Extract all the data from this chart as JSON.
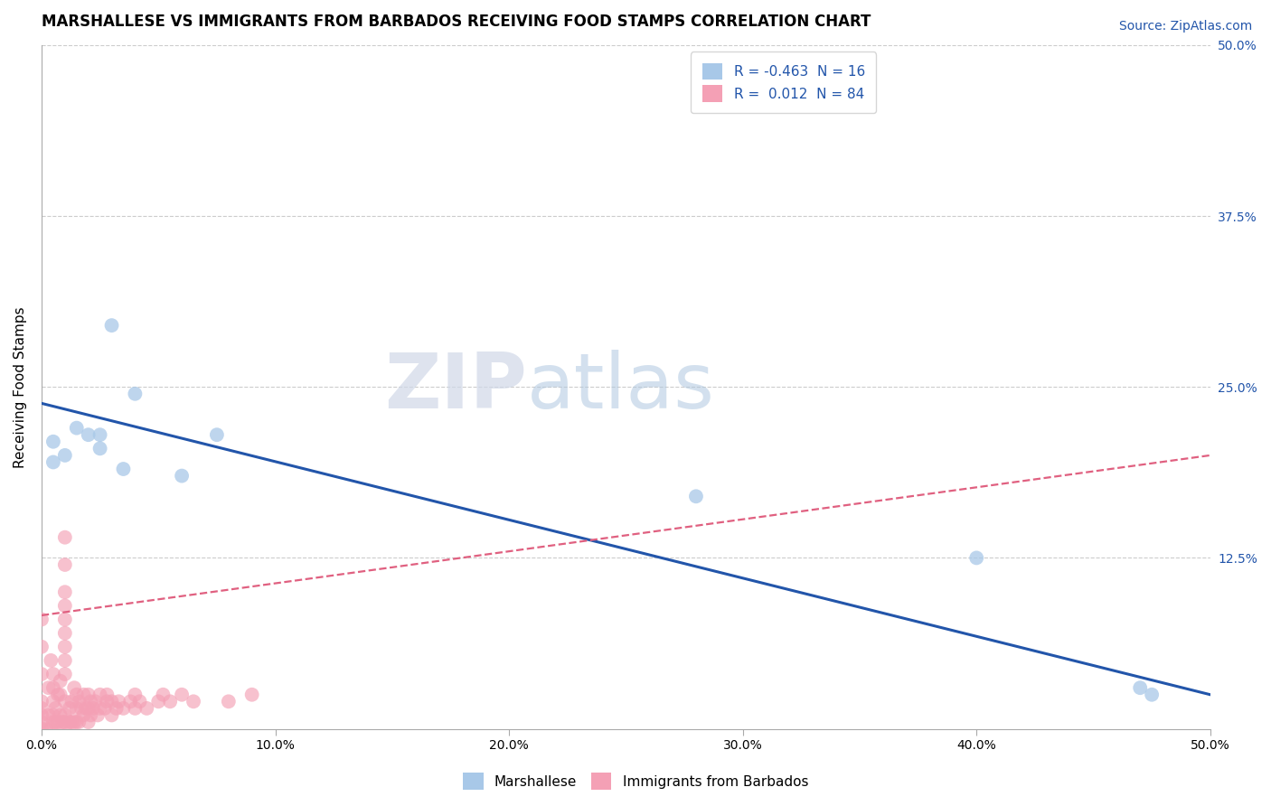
{
  "title": "MARSHALLESE VS IMMIGRANTS FROM BARBADOS RECEIVING FOOD STAMPS CORRELATION CHART",
  "source": "Source: ZipAtlas.com",
  "ylabel": "Receiving Food Stamps",
  "xmin": 0.0,
  "xmax": 0.5,
  "ymin": 0.0,
  "ymax": 0.5,
  "xticks": [
    0.0,
    0.1,
    0.2,
    0.3,
    0.4,
    0.5
  ],
  "yticks": [
    0.0,
    0.125,
    0.25,
    0.375,
    0.5
  ],
  "ytick_labels_right": [
    "",
    "12.5%",
    "25.0%",
    "37.5%",
    "50.0%"
  ],
  "xtick_labels": [
    "0.0%",
    "10.0%",
    "20.0%",
    "30.0%",
    "40.0%",
    "50.0%"
  ],
  "grid_color": "#cccccc",
  "background_color": "#ffffff",
  "blue_dot_color": "#a8c8e8",
  "pink_dot_color": "#f4a0b5",
  "blue_line_color": "#2255aa",
  "pink_line_color": "#e06080",
  "R_blue": -0.463,
  "N_blue": 16,
  "R_pink": 0.012,
  "N_pink": 84,
  "blue_line_x0": 0.0,
  "blue_line_y0": 0.238,
  "blue_line_x1": 0.5,
  "blue_line_y1": 0.025,
  "pink_line_x0": 0.0,
  "pink_line_y0": 0.083,
  "pink_line_x1": 0.5,
  "pink_line_y1": 0.2,
  "blue_scatter_x": [
    0.005,
    0.005,
    0.01,
    0.015,
    0.02,
    0.025,
    0.025,
    0.03,
    0.035,
    0.04,
    0.06,
    0.075,
    0.28,
    0.4,
    0.47,
    0.475
  ],
  "blue_scatter_y": [
    0.21,
    0.195,
    0.2,
    0.22,
    0.215,
    0.205,
    0.215,
    0.295,
    0.19,
    0.245,
    0.185,
    0.215,
    0.17,
    0.125,
    0.03,
    0.025
  ],
  "pink_scatter_x": [
    0.0,
    0.0,
    0.0,
    0.0,
    0.0,
    0.0,
    0.0,
    0.0,
    0.002,
    0.003,
    0.003,
    0.004,
    0.004,
    0.005,
    0.005,
    0.005,
    0.005,
    0.005,
    0.006,
    0.006,
    0.007,
    0.007,
    0.008,
    0.008,
    0.008,
    0.009,
    0.01,
    0.01,
    0.01,
    0.01,
    0.01,
    0.01,
    0.01,
    0.01,
    0.01,
    0.01,
    0.01,
    0.01,
    0.01,
    0.012,
    0.012,
    0.013,
    0.013,
    0.014,
    0.014,
    0.015,
    0.015,
    0.015,
    0.016,
    0.016,
    0.017,
    0.018,
    0.018,
    0.019,
    0.02,
    0.02,
    0.02,
    0.021,
    0.021,
    0.022,
    0.023,
    0.024,
    0.025,
    0.025,
    0.027,
    0.028,
    0.028,
    0.03,
    0.03,
    0.032,
    0.033,
    0.035,
    0.038,
    0.04,
    0.04,
    0.042,
    0.045,
    0.05,
    0.052,
    0.055,
    0.06,
    0.065,
    0.08,
    0.09
  ],
  "pink_scatter_y": [
    0.0,
    0.005,
    0.01,
    0.015,
    0.02,
    0.04,
    0.06,
    0.08,
    0.0,
    0.01,
    0.03,
    0.0,
    0.05,
    0.005,
    0.01,
    0.02,
    0.03,
    0.04,
    0.005,
    0.015,
    0.005,
    0.025,
    0.01,
    0.025,
    0.035,
    0.005,
    0.0,
    0.005,
    0.01,
    0.02,
    0.04,
    0.05,
    0.06,
    0.07,
    0.08,
    0.09,
    0.1,
    0.12,
    0.14,
    0.005,
    0.015,
    0.005,
    0.02,
    0.005,
    0.03,
    0.005,
    0.015,
    0.025,
    0.005,
    0.02,
    0.015,
    0.01,
    0.025,
    0.015,
    0.005,
    0.015,
    0.025,
    0.01,
    0.02,
    0.015,
    0.02,
    0.01,
    0.015,
    0.025,
    0.015,
    0.02,
    0.025,
    0.01,
    0.02,
    0.015,
    0.02,
    0.015,
    0.02,
    0.015,
    0.025,
    0.02,
    0.015,
    0.02,
    0.025,
    0.02,
    0.025,
    0.02,
    0.02,
    0.025
  ],
  "watermark_zip": "ZIP",
  "watermark_atlas": "atlas",
  "legend_blue_label": "Marshallese",
  "legend_pink_label": "Immigrants from Barbados",
  "title_fontsize": 12,
  "axis_label_fontsize": 11,
  "tick_fontsize": 10,
  "source_fontsize": 10,
  "legend_fontsize": 11
}
